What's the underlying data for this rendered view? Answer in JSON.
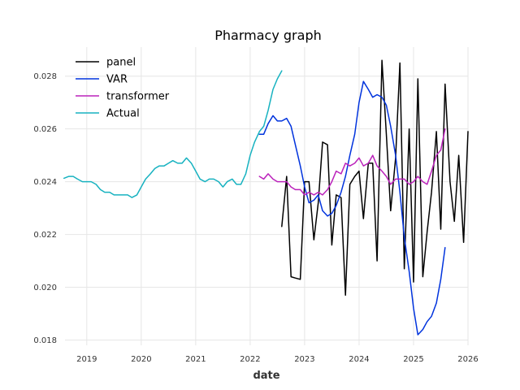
{
  "chart_data": {
    "type": "line",
    "title": "Pharmacy graph",
    "xlabel": "date",
    "ylabel": "",
    "xlim": [
      2018.6,
      2026.0
    ],
    "ylim": [
      0.0178,
      0.0291
    ],
    "x_ticks": [
      2019,
      2020,
      2021,
      2022,
      2023,
      2024,
      2025,
      2026
    ],
    "y_ticks": [
      0.018,
      0.02,
      0.022,
      0.024,
      0.026,
      0.028
    ],
    "x_tick_labels": [
      "2019",
      "2020",
      "2021",
      "2022",
      "2023",
      "2024",
      "2025",
      "2026"
    ],
    "y_tick_labels": [
      "0.018",
      "0.020",
      "0.022",
      "0.024",
      "0.026",
      "0.028"
    ],
    "grid": true,
    "legend_position": "upper-left",
    "series": [
      {
        "name": "panel",
        "color": "#000000",
        "points": [
          [
            2022.58,
            0.0223
          ],
          [
            2022.67,
            0.0242
          ],
          [
            2022.75,
            0.0204
          ],
          [
            2022.83,
            0.02035
          ],
          [
            2022.92,
            0.0203
          ],
          [
            2023.0,
            0.024
          ],
          [
            2023.08,
            0.024
          ],
          [
            2023.17,
            0.0218
          ],
          [
            2023.25,
            0.0232
          ],
          [
            2023.33,
            0.0255
          ],
          [
            2023.42,
            0.0254
          ],
          [
            2023.5,
            0.0216
          ],
          [
            2023.58,
            0.0235
          ],
          [
            2023.67,
            0.0234
          ],
          [
            2023.75,
            0.0197
          ],
          [
            2023.83,
            0.0239
          ],
          [
            2023.92,
            0.0242
          ],
          [
            2024.0,
            0.0244
          ],
          [
            2024.08,
            0.0226
          ],
          [
            2024.17,
            0.0247
          ],
          [
            2024.25,
            0.0247
          ],
          [
            2024.33,
            0.021
          ],
          [
            2024.42,
            0.0286
          ],
          [
            2024.5,
            0.0258
          ],
          [
            2024.58,
            0.0229
          ],
          [
            2024.67,
            0.0249
          ],
          [
            2024.75,
            0.0285
          ],
          [
            2024.83,
            0.0207
          ],
          [
            2024.92,
            0.026
          ],
          [
            2025.0,
            0.0202
          ],
          [
            2025.08,
            0.0279
          ],
          [
            2025.17,
            0.0204
          ],
          [
            2025.25,
            0.0221
          ],
          [
            2025.33,
            0.0236
          ],
          [
            2025.42,
            0.0259
          ],
          [
            2025.5,
            0.0222
          ],
          [
            2025.58,
            0.0277
          ],
          [
            2025.67,
            0.024
          ],
          [
            2025.75,
            0.0225
          ],
          [
            2025.83,
            0.025
          ],
          [
            2025.92,
            0.0217
          ],
          [
            2026.0,
            0.0259
          ]
        ]
      },
      {
        "name": "VAR",
        "color": "#0033dd",
        "points": [
          [
            2022.17,
            0.0258
          ],
          [
            2022.25,
            0.0258
          ],
          [
            2022.33,
            0.0262
          ],
          [
            2022.42,
            0.0265
          ],
          [
            2022.5,
            0.0263
          ],
          [
            2022.58,
            0.0263
          ],
          [
            2022.67,
            0.0264
          ],
          [
            2022.75,
            0.0261
          ],
          [
            2022.83,
            0.0254
          ],
          [
            2022.92,
            0.0246
          ],
          [
            2023.0,
            0.0238
          ],
          [
            2023.08,
            0.0232
          ],
          [
            2023.17,
            0.0233
          ],
          [
            2023.25,
            0.0235
          ],
          [
            2023.33,
            0.0229
          ],
          [
            2023.42,
            0.0227
          ],
          [
            2023.5,
            0.0228
          ],
          [
            2023.58,
            0.0231
          ],
          [
            2023.67,
            0.0236
          ],
          [
            2023.75,
            0.0242
          ],
          [
            2023.83,
            0.025
          ],
          [
            2023.92,
            0.0258
          ],
          [
            2024.0,
            0.027
          ],
          [
            2024.08,
            0.0278
          ],
          [
            2024.17,
            0.0275
          ],
          [
            2024.25,
            0.0272
          ],
          [
            2024.33,
            0.0273
          ],
          [
            2024.42,
            0.0272
          ],
          [
            2024.5,
            0.0269
          ],
          [
            2024.58,
            0.0261
          ],
          [
            2024.67,
            0.025
          ],
          [
            2024.75,
            0.0236
          ],
          [
            2024.83,
            0.0219
          ],
          [
            2024.92,
            0.0206
          ],
          [
            2025.0,
            0.0192
          ],
          [
            2025.08,
            0.0182
          ],
          [
            2025.17,
            0.0184
          ],
          [
            2025.25,
            0.0187
          ],
          [
            2025.33,
            0.0189
          ],
          [
            2025.42,
            0.0194
          ],
          [
            2025.5,
            0.0203
          ],
          [
            2025.58,
            0.0215
          ]
        ]
      },
      {
        "name": "transformer",
        "color": "#bb22bb",
        "points": [
          [
            2022.17,
            0.0242
          ],
          [
            2022.25,
            0.0241
          ],
          [
            2022.33,
            0.0243
          ],
          [
            2022.42,
            0.0241
          ],
          [
            2022.5,
            0.024
          ],
          [
            2022.58,
            0.024
          ],
          [
            2022.67,
            0.024
          ],
          [
            2022.75,
            0.0238
          ],
          [
            2022.83,
            0.0237
          ],
          [
            2022.92,
            0.0237
          ],
          [
            2023.0,
            0.0235
          ],
          [
            2023.08,
            0.0236
          ],
          [
            2023.17,
            0.0235
          ],
          [
            2023.25,
            0.0236
          ],
          [
            2023.33,
            0.0235
          ],
          [
            2023.42,
            0.0237
          ],
          [
            2023.5,
            0.024
          ],
          [
            2023.58,
            0.0244
          ],
          [
            2023.67,
            0.0243
          ],
          [
            2023.75,
            0.0247
          ],
          [
            2023.83,
            0.0246
          ],
          [
            2023.92,
            0.0247
          ],
          [
            2024.0,
            0.0249
          ],
          [
            2024.08,
            0.0246
          ],
          [
            2024.17,
            0.0247
          ],
          [
            2024.25,
            0.025
          ],
          [
            2024.33,
            0.0246
          ],
          [
            2024.42,
            0.0244
          ],
          [
            2024.5,
            0.0242
          ],
          [
            2024.58,
            0.0239
          ],
          [
            2024.67,
            0.0241
          ],
          [
            2024.75,
            0.0241
          ],
          [
            2024.83,
            0.0241
          ],
          [
            2024.92,
            0.0239
          ],
          [
            2025.0,
            0.024
          ],
          [
            2025.08,
            0.0242
          ],
          [
            2025.17,
            0.024
          ],
          [
            2025.25,
            0.0239
          ],
          [
            2025.33,
            0.0244
          ],
          [
            2025.42,
            0.025
          ],
          [
            2025.5,
            0.0252
          ],
          [
            2025.58,
            0.026
          ]
        ]
      },
      {
        "name": "Actual",
        "color": "#17b2c0",
        "points": [
          [
            2018.58,
            0.02413
          ],
          [
            2018.67,
            0.0242
          ],
          [
            2018.75,
            0.0242
          ],
          [
            2018.83,
            0.0241
          ],
          [
            2018.92,
            0.024
          ],
          [
            2019.0,
            0.024
          ],
          [
            2019.08,
            0.024
          ],
          [
            2019.17,
            0.0239
          ],
          [
            2019.25,
            0.0237
          ],
          [
            2019.33,
            0.0236
          ],
          [
            2019.42,
            0.0236
          ],
          [
            2019.5,
            0.0235
          ],
          [
            2019.58,
            0.0235
          ],
          [
            2019.67,
            0.0235
          ],
          [
            2019.75,
            0.0235
          ],
          [
            2019.83,
            0.0234
          ],
          [
            2019.92,
            0.0235
          ],
          [
            2020.0,
            0.0238
          ],
          [
            2020.08,
            0.0241
          ],
          [
            2020.17,
            0.0243
          ],
          [
            2020.25,
            0.0245
          ],
          [
            2020.33,
            0.0246
          ],
          [
            2020.42,
            0.0246
          ],
          [
            2020.5,
            0.0247
          ],
          [
            2020.58,
            0.0248
          ],
          [
            2020.67,
            0.0247
          ],
          [
            2020.75,
            0.0247
          ],
          [
            2020.83,
            0.0249
          ],
          [
            2020.92,
            0.0247
          ],
          [
            2021.0,
            0.0244
          ],
          [
            2021.08,
            0.0241
          ],
          [
            2021.17,
            0.024
          ],
          [
            2021.25,
            0.0241
          ],
          [
            2021.33,
            0.0241
          ],
          [
            2021.42,
            0.024
          ],
          [
            2021.5,
            0.0238
          ],
          [
            2021.58,
            0.024
          ],
          [
            2021.67,
            0.0241
          ],
          [
            2021.75,
            0.0239
          ],
          [
            2021.83,
            0.0239
          ],
          [
            2021.92,
            0.0243
          ],
          [
            2022.0,
            0.025
          ],
          [
            2022.08,
            0.0255
          ],
          [
            2022.17,
            0.0259
          ],
          [
            2022.25,
            0.0261
          ],
          [
            2022.33,
            0.0267
          ],
          [
            2022.42,
            0.0275
          ],
          [
            2022.5,
            0.0279
          ],
          [
            2022.58,
            0.0282
          ]
        ]
      }
    ]
  }
}
